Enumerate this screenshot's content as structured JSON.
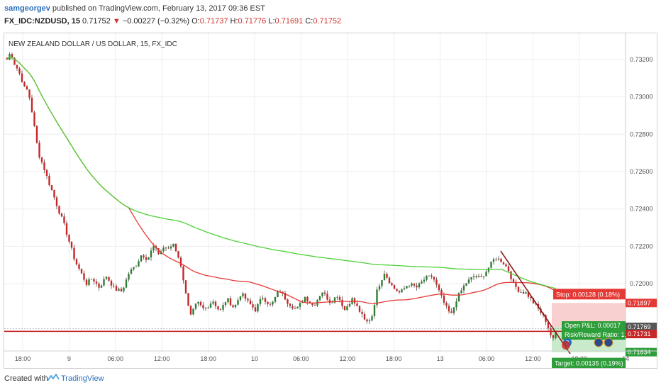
{
  "header": {
    "user": "samgeorgev",
    "published_text": "published on TradingView.com, February 13, 2017 09:36 EST",
    "symbol": "FX_IDC:NZDUSD, 15",
    "last": "0.71752",
    "change": "−0.00227 (−0.32%)",
    "o_label": "O:",
    "o_value": "0.71737",
    "h_label": "H:",
    "h_value": "0.71776",
    "l_label": "L:",
    "l_value": "0.71691",
    "c_label": "C:",
    "c_value": "0.71752"
  },
  "footer": {
    "created": "Created with",
    "brand": "TradingView"
  },
  "colors": {
    "bg": "#ffffff",
    "grid": "#eeeeee",
    "up": "#2e7d32",
    "down": "#c62828",
    "ma_fast": "#e53935",
    "ma_slow": "#4cd137",
    "support": "#c62828",
    "trend": "#8b1a1a",
    "stop_zone": "#f8c8c8",
    "target_zone": "#bfe8c2"
  },
  "chart_data": {
    "type": "candlestick",
    "title": "NEW ZEALAND DOLLAR / US DOLLAR, 15, FX_IDC",
    "ylim": [
      0.7164,
      0.7334
    ],
    "y_ticks": [
      "0.73200",
      "0.73000",
      "0.72800",
      "0.72600",
      "0.72400",
      "0.72200",
      "0.72000"
    ],
    "x_ticks": [
      "18:00",
      "9",
      "06:00",
      "12:00",
      "18:00",
      "10",
      "06:00",
      "12:00",
      "18:00",
      "13",
      "06:00",
      "12:00",
      "18:00",
      "14"
    ],
    "price_labels": [
      "0.71897",
      "0.71769",
      "0.71731",
      "0.71634"
    ],
    "trade_boxes": {
      "stop_label": "Stop: 0.00128 (0.18%)",
      "pnl_label": "Open P&L: 0.00017",
      "rr_label": "Risk/Reward Ratio: 1.",
      "target_label": "Target: 0.00135 (0.19%)",
      "stop_price": 0.71897,
      "entry_price": 0.71769,
      "target_price": 0.71634
    },
    "support_level": 0.71745,
    "trendline": {
      "start_price": 0.72175,
      "end_price": 0.71625
    },
    "event_badge": "2",
    "keypoints": [
      [
        0,
        0.732
      ],
      [
        5,
        0.7324
      ],
      [
        10,
        0.7318
      ],
      [
        16,
        0.7314
      ],
      [
        20,
        0.731
      ],
      [
        24,
        0.7305
      ],
      [
        30,
        0.7303
      ],
      [
        36,
        0.729
      ],
      [
        44,
        0.727
      ],
      [
        52,
        0.7262
      ],
      [
        58,
        0.7255
      ],
      [
        64,
        0.7249
      ],
      [
        72,
        0.724
      ],
      [
        80,
        0.7232
      ],
      [
        88,
        0.7222
      ],
      [
        96,
        0.7212
      ],
      [
        104,
        0.7206
      ],
      [
        112,
        0.72
      ],
      [
        120,
        0.7203
      ],
      [
        130,
        0.7198
      ],
      [
        140,
        0.7204
      ],
      [
        152,
        0.7197
      ],
      [
        162,
        0.7196
      ],
      [
        172,
        0.7206
      ],
      [
        182,
        0.721
      ],
      [
        190,
        0.7216
      ],
      [
        198,
        0.7213
      ],
      [
        206,
        0.722
      ],
      [
        214,
        0.7216
      ],
      [
        222,
        0.722
      ],
      [
        228,
        0.7218
      ],
      [
        234,
        0.7222
      ],
      [
        242,
        0.7214
      ],
      [
        250,
        0.72
      ],
      [
        258,
        0.7182
      ],
      [
        268,
        0.719
      ],
      [
        278,
        0.7186
      ],
      [
        290,
        0.7191
      ],
      [
        300,
        0.7185
      ],
      [
        310,
        0.7192
      ],
      [
        320,
        0.7187
      ],
      [
        330,
        0.7195
      ],
      [
        340,
        0.719
      ],
      [
        350,
        0.7186
      ],
      [
        360,
        0.7193
      ],
      [
        372,
        0.7188
      ],
      [
        384,
        0.7197
      ],
      [
        396,
        0.719
      ],
      [
        408,
        0.7186
      ],
      [
        420,
        0.7193
      ],
      [
        432,
        0.7188
      ],
      [
        444,
        0.7196
      ],
      [
        456,
        0.719
      ],
      [
        466,
        0.7194
      ],
      [
        476,
        0.7186
      ],
      [
        486,
        0.7192
      ],
      [
        496,
        0.7186
      ],
      [
        506,
        0.7179
      ],
      [
        514,
        0.7182
      ],
      [
        522,
        0.7197
      ],
      [
        532,
        0.7206
      ],
      [
        544,
        0.7198
      ],
      [
        554,
        0.7195
      ],
      [
        566,
        0.72
      ],
      [
        578,
        0.7198
      ],
      [
        590,
        0.7203
      ],
      [
        600,
        0.7204
      ],
      [
        610,
        0.7195
      ],
      [
        618,
        0.7188
      ],
      [
        626,
        0.7183
      ],
      [
        634,
        0.7192
      ],
      [
        646,
        0.72
      ],
      [
        658,
        0.7204
      ],
      [
        668,
        0.7203
      ],
      [
        678,
        0.7208
      ],
      [
        688,
        0.7214
      ],
      [
        698,
        0.7212
      ],
      [
        706,
        0.7208
      ],
      [
        714,
        0.72
      ],
      [
        722,
        0.7196
      ],
      [
        732,
        0.7195
      ],
      [
        742,
        0.719
      ],
      [
        752,
        0.7185
      ],
      [
        760,
        0.718
      ],
      [
        766,
        0.7173
      ],
      [
        770,
        0.717
      ],
      [
        774,
        0.7175
      ]
    ]
  }
}
